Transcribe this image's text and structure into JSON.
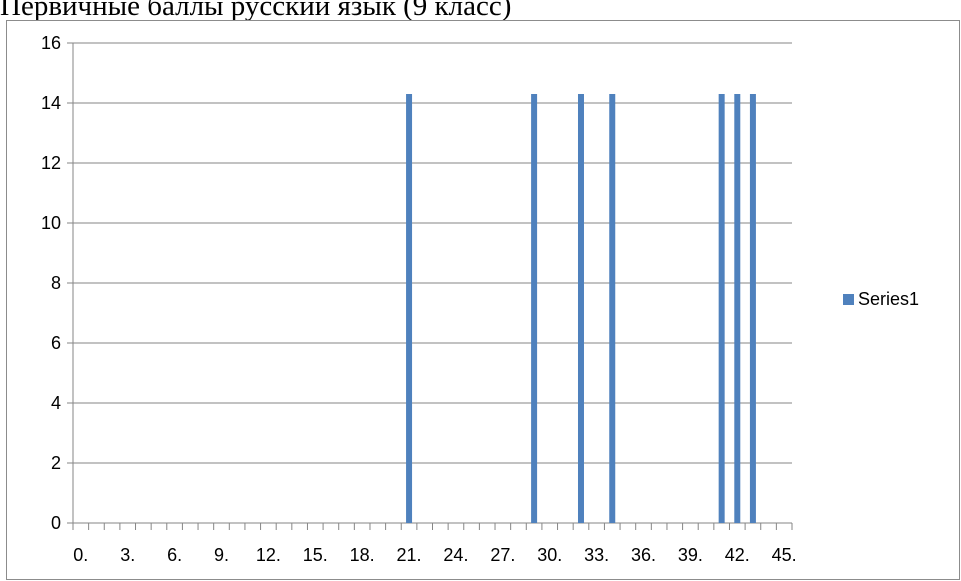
{
  "document": {
    "title": "Первичные баллы русский язык (9 класс)"
  },
  "chart_data": {
    "type": "bar",
    "title": "",
    "xlabel": "",
    "ylabel": "",
    "x_range": [
      0,
      46
    ],
    "ylim": [
      0,
      16
    ],
    "y_ticks": [
      0,
      2,
      4,
      6,
      8,
      10,
      12,
      14,
      16
    ],
    "x_tick_labels": [
      {
        "value": 0,
        "label": "0."
      },
      {
        "value": 3,
        "label": "3."
      },
      {
        "value": 6,
        "label": "6."
      },
      {
        "value": 9,
        "label": "9."
      },
      {
        "value": 12,
        "label": "12."
      },
      {
        "value": 15,
        "label": "15."
      },
      {
        "value": 18,
        "label": "18."
      },
      {
        "value": 21,
        "label": "21."
      },
      {
        "value": 24,
        "label": "24."
      },
      {
        "value": 27,
        "label": "27."
      },
      {
        "value": 30,
        "label": "30."
      },
      {
        "value": 33,
        "label": "33."
      },
      {
        "value": 36,
        "label": "36."
      },
      {
        "value": 39,
        "label": "39."
      },
      {
        "value": 42,
        "label": "42."
      },
      {
        "value": 45,
        "label": "45."
      }
    ],
    "grid": true,
    "legend": "right",
    "series": [
      {
        "name": "Series1",
        "color": "#4f81bd",
        "points": [
          {
            "x": 21,
            "y": 14.3
          },
          {
            "x": 29,
            "y": 14.3
          },
          {
            "x": 32,
            "y": 14.3
          },
          {
            "x": 34,
            "y": 14.3
          },
          {
            "x": 41,
            "y": 14.3
          },
          {
            "x": 42,
            "y": 14.3
          },
          {
            "x": 43,
            "y": 14.3
          }
        ]
      }
    ]
  }
}
